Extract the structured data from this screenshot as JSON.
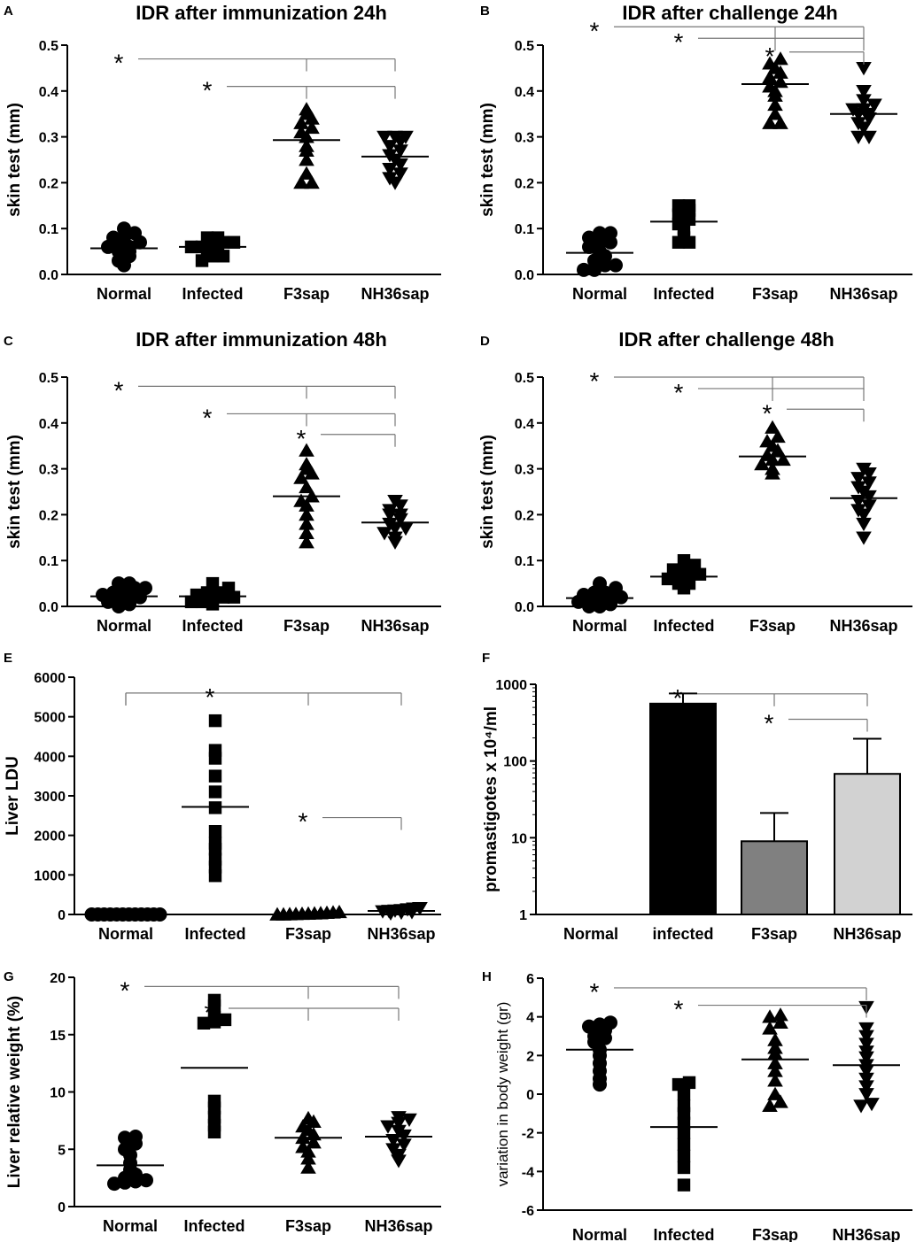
{
  "chart_data": [
    {
      "panel": "A",
      "type": "scatter",
      "title": "IDR after immunization 24h",
      "ylabel": "skin test (mm)",
      "ylim": [
        0,
        0.5
      ],
      "yticks": [
        0.0,
        0.1,
        0.2,
        0.3,
        0.4,
        0.5
      ],
      "categories": [
        "Normal",
        "Infected",
        "F3sap",
        "NH36sap"
      ],
      "markers": [
        "circle",
        "square",
        "triangle-up",
        "triangle-down"
      ],
      "groups": [
        {
          "mean": 0.057,
          "values": [
            0.02,
            0.03,
            0.04,
            0.05,
            0.05,
            0.06,
            0.06,
            0.06,
            0.07,
            0.08,
            0.08,
            0.09,
            0.1
          ]
        },
        {
          "mean": 0.06,
          "values": [
            0.03,
            0.04,
            0.04,
            0.05,
            0.05,
            0.06,
            0.06,
            0.06,
            0.07,
            0.07,
            0.08,
            0.08
          ]
        },
        {
          "mean": 0.293,
          "values": [
            0.2,
            0.2,
            0.22,
            0.25,
            0.27,
            0.28,
            0.3,
            0.31,
            0.32,
            0.33,
            0.34,
            0.35,
            0.36
          ]
        },
        {
          "mean": 0.257,
          "values": [
            0.2,
            0.21,
            0.22,
            0.23,
            0.24,
            0.25,
            0.26,
            0.27,
            0.28,
            0.29,
            0.3,
            0.3,
            0.3
          ]
        }
      ],
      "significance": [
        {
          "label": "*",
          "from": 0,
          "to": [
            2,
            3
          ],
          "level": 0.47
        },
        {
          "label": "*",
          "from": 1,
          "to": [
            2,
            3
          ],
          "level": 0.41
        }
      ]
    },
    {
      "panel": "B",
      "type": "scatter",
      "title": "IDR after challenge 24h",
      "ylabel": "skin test (mm)",
      "ylim": [
        0,
        0.5
      ],
      "yticks": [
        0.0,
        0.1,
        0.2,
        0.3,
        0.4,
        0.5
      ],
      "categories": [
        "Normal",
        "Infected",
        "F3sap",
        "NH36sap"
      ],
      "markers": [
        "circle",
        "square",
        "triangle-up",
        "triangle-down"
      ],
      "groups": [
        {
          "mean": 0.047,
          "values": [
            0.01,
            0.01,
            0.02,
            0.02,
            0.03,
            0.04,
            0.05,
            0.06,
            0.07,
            0.07,
            0.08,
            0.09,
            0.09
          ]
        },
        {
          "mean": 0.115,
          "values": [
            0.07,
            0.07,
            0.08,
            0.1,
            0.11,
            0.12,
            0.13,
            0.14,
            0.15,
            0.15
          ]
        },
        {
          "mean": 0.415,
          "values": [
            0.33,
            0.33,
            0.35,
            0.37,
            0.39,
            0.4,
            0.41,
            0.42,
            0.43,
            0.44,
            0.45,
            0.46,
            0.47
          ]
        },
        {
          "mean": 0.35,
          "values": [
            0.3,
            0.3,
            0.32,
            0.33,
            0.34,
            0.35,
            0.35,
            0.36,
            0.36,
            0.37,
            0.38,
            0.4,
            0.45
          ]
        }
      ],
      "significance": [
        {
          "label": "*",
          "from": 0,
          "to": [
            2,
            3
          ],
          "level": 0.54
        },
        {
          "label": "*",
          "from": 1,
          "to": [
            2,
            3
          ],
          "level": 0.515
        },
        {
          "label": "*",
          "from": 2,
          "to": [
            3
          ],
          "level": 0.485
        }
      ]
    },
    {
      "panel": "C",
      "type": "scatter",
      "title": "IDR after immunization 48h",
      "ylabel": "skin test (mm)",
      "ylim": [
        0,
        0.5
      ],
      "yticks": [
        0.0,
        0.1,
        0.2,
        0.3,
        0.4,
        0.5
      ],
      "categories": [
        "Normal",
        "Infected",
        "F3sap",
        "NH36sap"
      ],
      "markers": [
        "circle",
        "square",
        "triangle-up",
        "triangle-down"
      ],
      "groups": [
        {
          "mean": 0.022,
          "values": [
            0.0,
            0.005,
            0.01,
            0.01,
            0.015,
            0.02,
            0.025,
            0.03,
            0.03,
            0.04,
            0.04,
            0.05,
            0.05
          ]
        },
        {
          "mean": 0.022,
          "values": [
            0.005,
            0.01,
            0.01,
            0.015,
            0.02,
            0.02,
            0.025,
            0.03,
            0.03,
            0.04,
            0.05
          ]
        },
        {
          "mean": 0.24,
          "values": [
            0.14,
            0.16,
            0.18,
            0.2,
            0.22,
            0.23,
            0.24,
            0.26,
            0.28,
            0.29,
            0.3,
            0.31,
            0.34
          ]
        },
        {
          "mean": 0.183,
          "values": [
            0.14,
            0.15,
            0.16,
            0.17,
            0.17,
            0.18,
            0.19,
            0.2,
            0.2,
            0.21,
            0.22,
            0.23
          ]
        }
      ],
      "significance": [
        {
          "label": "*",
          "from": 0,
          "to": [
            2,
            3
          ],
          "level": 0.48
        },
        {
          "label": "*",
          "from": 1,
          "to": [
            2,
            3
          ],
          "level": 0.42
        },
        {
          "label": "*",
          "from": 2,
          "to": [
            3
          ],
          "level": 0.375
        }
      ]
    },
    {
      "panel": "D",
      "type": "scatter",
      "title": "IDR after challenge 48h",
      "ylabel": "skin test (mm)",
      "ylim": [
        0,
        0.5
      ],
      "yticks": [
        0.0,
        0.1,
        0.2,
        0.3,
        0.4,
        0.5
      ],
      "categories": [
        "Normal",
        "Infected",
        "F3sap",
        "NH36sap"
      ],
      "markers": [
        "circle",
        "square",
        "triangle-up",
        "triangle-down"
      ],
      "groups": [
        {
          "mean": 0.018,
          "values": [
            0.0,
            0.0,
            0.005,
            0.01,
            0.01,
            0.015,
            0.02,
            0.02,
            0.025,
            0.03,
            0.03,
            0.04,
            0.05
          ]
        },
        {
          "mean": 0.065,
          "values": [
            0.04,
            0.05,
            0.05,
            0.06,
            0.06,
            0.07,
            0.07,
            0.08,
            0.08,
            0.09,
            0.1
          ]
        },
        {
          "mean": 0.327,
          "values": [
            0.29,
            0.3,
            0.31,
            0.32,
            0.32,
            0.33,
            0.34,
            0.35,
            0.36,
            0.37,
            0.39
          ]
        },
        {
          "mean": 0.236,
          "values": [
            0.15,
            0.18,
            0.2,
            0.21,
            0.22,
            0.23,
            0.24,
            0.25,
            0.26,
            0.27,
            0.28,
            0.29,
            0.3
          ]
        }
      ],
      "significance": [
        {
          "label": "*",
          "from": 0,
          "to": [
            2,
            3
          ],
          "level": 0.5
        },
        {
          "label": "*",
          "from": 1,
          "to": [
            2,
            3
          ],
          "level": 0.475
        },
        {
          "label": "*",
          "from": 2,
          "to": [
            3
          ],
          "level": 0.43
        }
      ]
    },
    {
      "panel": "E",
      "type": "scatter",
      "title": "",
      "ylabel": "Liver LDU",
      "ylim": [
        0,
        6000
      ],
      "yticks": [
        0,
        1000,
        2000,
        3000,
        4000,
        5000,
        6000
      ],
      "categories": [
        "Normal",
        "Infected",
        "F3sap",
        "NH36sap"
      ],
      "markers": [
        "circle",
        "square",
        "triangle-up",
        "triangle-down"
      ],
      "groups": [
        {
          "mean": 0,
          "values": [
            0,
            0,
            0,
            0,
            0,
            0,
            0,
            0,
            0,
            0,
            0,
            0
          ]
        },
        {
          "mean": 2720,
          "values": [
            980,
            1200,
            1400,
            1650,
            1800,
            2100,
            2700,
            3100,
            3500,
            3950,
            4150,
            4900
          ]
        },
        {
          "mean": 20,
          "values": [
            0,
            0,
            5,
            10,
            15,
            20,
            25,
            30,
            40,
            50,
            60
          ]
        },
        {
          "mean": 90,
          "values": [
            30,
            50,
            60,
            80,
            90,
            100,
            110,
            130,
            150,
            160
          ]
        }
      ],
      "significance": [
        {
          "label": "*",
          "from": 1,
          "to": [
            0,
            2,
            3
          ],
          "level": 5600
        },
        {
          "label": "*",
          "from": 2,
          "to": [
            3
          ],
          "level": 2450
        }
      ]
    },
    {
      "panel": "F",
      "type": "bar",
      "title": "",
      "ylabel": "promastigotes x 10⁴/ml",
      "yscale": "log",
      "ylim": [
        1,
        1000
      ],
      "yticks": [
        1,
        10,
        100,
        1000
      ],
      "ytick_labels": [
        "1",
        "10",
        "100",
        "1000"
      ],
      "categories": [
        "Normal",
        "infected",
        "F3sap",
        "NH36sap"
      ],
      "values": [
        0,
        560,
        9,
        68
      ],
      "error_upper": [
        0,
        760,
        21,
        195
      ],
      "colors": [
        "#000000",
        "#000000",
        "#808080",
        "#d2d2d2"
      ],
      "significance": [
        {
          "label": "*",
          "from": 1,
          "to": [
            2,
            3
          ],
          "level": 750
        },
        {
          "label": "*",
          "from": 2,
          "to": [
            3
          ],
          "level": 350
        }
      ]
    },
    {
      "panel": "G",
      "type": "scatter",
      "title": "",
      "ylabel": "Liver relative weight (%)",
      "ylim": [
        0,
        20
      ],
      "yticks": [
        0,
        5,
        10,
        15,
        20
      ],
      "categories": [
        "Normal",
        "Infected",
        "F3sap",
        "NH36sap"
      ],
      "markers": [
        "circle",
        "square",
        "triangle-up",
        "triangle-down"
      ],
      "groups": [
        {
          "mean": 3.6,
          "values": [
            2.0,
            2.1,
            2.2,
            2.3,
            2.5,
            2.8,
            3.2,
            3.8,
            4.5,
            5.0,
            5.5,
            6.0,
            6.1
          ]
        },
        {
          "mean": 12.1,
          "values": [
            6.5,
            7.1,
            7.8,
            8.6,
            9.2,
            16.0,
            16.1,
            16.3,
            16.5,
            17.5,
            18.0
          ]
        },
        {
          "mean": 6.0,
          "values": [
            3.4,
            4.2,
            4.8,
            5.2,
            5.6,
            6.0,
            6.3,
            6.7,
            7.0,
            7.4,
            7.7
          ]
        },
        {
          "mean": 6.1,
          "values": [
            4.0,
            4.5,
            5.0,
            5.4,
            5.8,
            6.2,
            6.6,
            7.0,
            7.3,
            7.6,
            7.8
          ]
        }
      ],
      "significance": [
        {
          "label": "*",
          "from": 0,
          "to": [
            2,
            3
          ],
          "level": 19.2
        },
        {
          "label": "*",
          "from": 1,
          "to": [
            2,
            3
          ],
          "level": 17.3
        }
      ]
    },
    {
      "panel": "H",
      "type": "scatter",
      "title": "",
      "ylabel": "variation in body weight (gr)",
      "ylim": [
        -6,
        6
      ],
      "yticks": [
        -6,
        -4,
        -2,
        0,
        2,
        4,
        6
      ],
      "categories": [
        "Normal",
        "Infected",
        "F3sap",
        "NH36sap"
      ],
      "markers": [
        "circle",
        "square",
        "triangle-up",
        "triangle-down"
      ],
      "groups": [
        {
          "mean": 2.3,
          "values": [
            0.5,
            0.8,
            1.2,
            1.6,
            2.0,
            2.3,
            2.7,
            2.9,
            3.0,
            3.3,
            3.5,
            3.6,
            3.7
          ]
        },
        {
          "mean": -1.7,
          "values": [
            -4.7,
            -3.8,
            -3.2,
            -2.6,
            -2.0,
            -1.5,
            -1.0,
            -0.6,
            0.0,
            0.5,
            0.6
          ]
        },
        {
          "mean": 1.8,
          "values": [
            -0.6,
            -0.4,
            0.0,
            0.7,
            1.2,
            1.6,
            2.1,
            2.4,
            2.8,
            3.4,
            3.7,
            4.0,
            4.1
          ]
        },
        {
          "mean": 1.5,
          "values": [
            -0.6,
            -0.5,
            0.0,
            0.4,
            0.8,
            1.2,
            1.5,
            1.9,
            2.2,
            2.6,
            3.0,
            3.4,
            4.5
          ]
        }
      ],
      "significance": [
        {
          "label": "*",
          "from": 0,
          "to": [
            3
          ],
          "level": 5.5
        },
        {
          "label": "*",
          "from": 1,
          "to": [
            3
          ],
          "level": 4.6
        }
      ]
    }
  ]
}
